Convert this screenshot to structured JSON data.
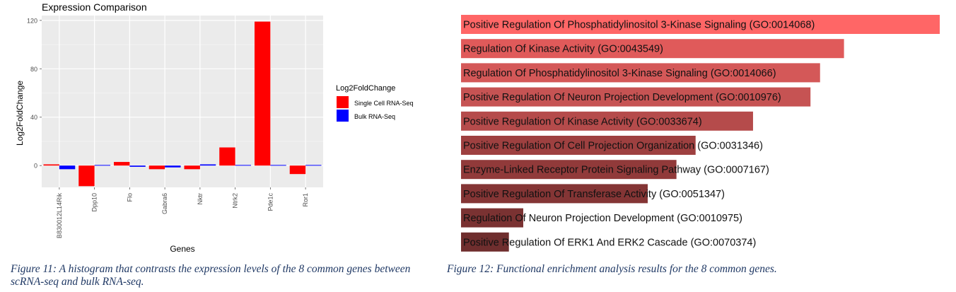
{
  "chart_data": [
    {
      "type": "bar",
      "title": "Expression Comparison",
      "xlabel": "Genes",
      "ylabel": "Log2FoldChange",
      "ylim": [
        -18,
        124
      ],
      "yticks": [
        0,
        40,
        80,
        120
      ],
      "grid": true,
      "legend_title": "Log2FoldChange",
      "legend_position": "right",
      "categories": [
        "B830012L14Rik",
        "Dpp10",
        "Flo",
        "Gabra6",
        "Nktr",
        "Ntrk2",
        "Pde1c",
        "Ror1"
      ],
      "series": [
        {
          "name": "Single Cell RNA-Seq",
          "color": "#ff0000",
          "values": [
            1,
            -17,
            3,
            -3,
            -3,
            15,
            119,
            -7
          ]
        },
        {
          "name": "Bulk RNA-Seq",
          "color": "#0000ff",
          "values": [
            -3,
            0.5,
            -1,
            -1.5,
            1,
            0.5,
            0.5,
            0.5
          ]
        }
      ]
    },
    {
      "type": "bar",
      "orientation": "horizontal",
      "xlim": [
        0,
        1
      ],
      "categories": [
        "Positive Regulation Of Phosphatidylinositol 3-Kinase Signaling (GO:0014068)",
        "Regulation Of Kinase Activity (GO:0043549)",
        "Regulation Of Phosphatidylinositol 3-Kinase Signaling (GO:0014066)",
        "Positive Regulation Of Neuron Projection Development (GO:0010976)",
        "Positive Regulation Of Kinase Activity (GO:0033674)",
        "Positive Regulation Of Cell Projection Organization (GO:0031346)",
        "Enzyme-Linked Receptor Protein Signaling Pathway (GO:0007167)",
        "Positive Regulation Of Transferase Activity (GO:0051347)",
        "Regulation Of Neuron Projection Development (GO:0010975)",
        "Positive Regulation Of ERK1 And ERK2 Cascade (GO:0070374)"
      ],
      "values": [
        1.0,
        0.8,
        0.75,
        0.73,
        0.61,
        0.49,
        0.45,
        0.39,
        0.13,
        0.1
      ],
      "colors": [
        "#ff6666",
        "#e05a5a",
        "#d45858",
        "#c65353",
        "#b54b4b",
        "#9e4040",
        "#913a3a",
        "#843535",
        "#7a3232",
        "#6f2e2e"
      ]
    }
  ],
  "captions": {
    "figure11": "Figure 11: A histogram that contrasts the expression levels of the 8 common genes between scRNA-seq and bulk RNA-seq.",
    "figure12": "Figure 12: Functional enrichment analysis results for the 8 common genes."
  }
}
